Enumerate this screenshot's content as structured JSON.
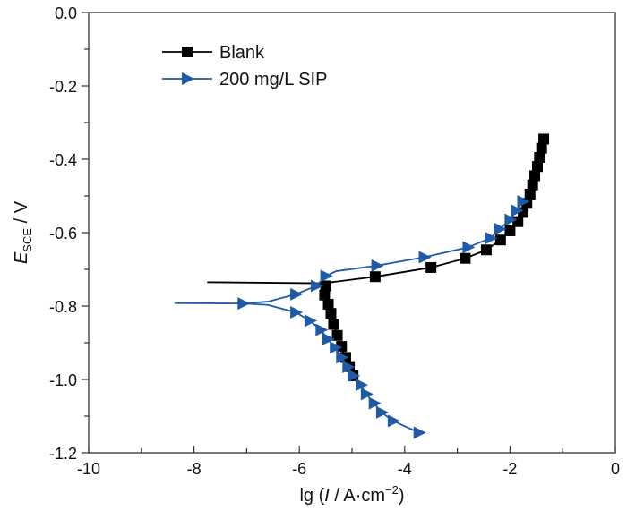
{
  "chart_data": {
    "type": "line",
    "title": "",
    "xlabel": {
      "prefix": "lg (",
      "italic": "I",
      "suffix": " / A·cm",
      "sup": "−2",
      "close": ")"
    },
    "ylabel": {
      "main": "E",
      "sub": "SCE",
      "suffix": " / V"
    },
    "xlim": [
      -10,
      0
    ],
    "ylim": [
      -1.2,
      0.0
    ],
    "xticks": [
      -10,
      -8,
      -6,
      -4,
      -2,
      0
    ],
    "xtick_labels": [
      "-10",
      "-8",
      "-6",
      "-4",
      "-2",
      "0"
    ],
    "yticks": [
      0.0,
      -0.2,
      -0.4,
      -0.6,
      -0.8,
      -1.0,
      -1.2
    ],
    "ytick_labels": [
      "0.0",
      "-0.2",
      "-0.4",
      "-0.6",
      "-0.8",
      "-1.0",
      "-1.2"
    ],
    "grid": false,
    "legend_position": "top-left",
    "series": [
      {
        "name": "Blank",
        "color": "#000000",
        "marker": "square",
        "line_branches": [
          [
            [
              -4.98,
              -0.99
            ],
            [
              -5.05,
              -0.965
            ],
            [
              -5.12,
              -0.94
            ],
            [
              -5.2,
              -0.91
            ],
            [
              -5.28,
              -0.88
            ],
            [
              -5.35,
              -0.85
            ],
            [
              -5.4,
              -0.82
            ],
            [
              -5.45,
              -0.795
            ],
            [
              -5.52,
              -0.77
            ],
            [
              -5.5,
              -0.745
            ],
            [
              -5.6,
              -0.738
            ],
            [
              -7.75,
              -0.735
            ]
          ],
          [
            [
              -5.6,
              -0.738
            ],
            [
              -5.5,
              -0.737
            ],
            [
              -4.56,
              -0.72
            ],
            [
              -3.5,
              -0.695
            ],
            [
              -2.85,
              -0.67
            ],
            [
              -2.45,
              -0.647
            ],
            [
              -2.18,
              -0.62
            ],
            [
              -2.0,
              -0.595
            ],
            [
              -1.85,
              -0.57
            ],
            [
              -1.75,
              -0.545
            ],
            [
              -1.68,
              -0.52
            ],
            [
              -1.62,
              -0.495
            ],
            [
              -1.57,
              -0.47
            ],
            [
              -1.53,
              -0.445
            ],
            [
              -1.48,
              -0.42
            ],
            [
              -1.44,
              -0.395
            ],
            [
              -1.4,
              -0.37
            ],
            [
              -1.36,
              -0.345
            ]
          ]
        ],
        "markers": [
          [
            -4.98,
            -0.99
          ],
          [
            -5.05,
            -0.965
          ],
          [
            -5.12,
            -0.94
          ],
          [
            -5.2,
            -0.91
          ],
          [
            -5.28,
            -0.88
          ],
          [
            -5.35,
            -0.85
          ],
          [
            -5.4,
            -0.82
          ],
          [
            -5.45,
            -0.795
          ],
          [
            -5.52,
            -0.77
          ],
          [
            -5.5,
            -0.745
          ],
          [
            -4.56,
            -0.72
          ],
          [
            -3.5,
            -0.695
          ],
          [
            -2.85,
            -0.67
          ],
          [
            -2.45,
            -0.647
          ],
          [
            -2.18,
            -0.62
          ],
          [
            -2.0,
            -0.595
          ],
          [
            -1.85,
            -0.57
          ],
          [
            -1.75,
            -0.545
          ],
          [
            -1.68,
            -0.52
          ],
          [
            -1.62,
            -0.495
          ],
          [
            -1.57,
            -0.47
          ],
          [
            -1.53,
            -0.445
          ],
          [
            -1.48,
            -0.42
          ],
          [
            -1.44,
            -0.395
          ],
          [
            -1.4,
            -0.37
          ],
          [
            -1.36,
            -0.345
          ]
        ]
      },
      {
        "name": "200 mg/L SIP",
        "color": "#1f5aa6",
        "marker": "triangle-right",
        "line_branches": [
          [
            [
              -3.73,
              -1.145
            ],
            [
              -4.22,
              -1.113
            ],
            [
              -4.44,
              -1.09
            ],
            [
              -4.58,
              -1.065
            ],
            [
              -4.73,
              -1.04
            ],
            [
              -4.83,
              -1.015
            ],
            [
              -4.98,
              -0.99
            ],
            [
              -5.08,
              -0.966
            ],
            [
              -5.2,
              -0.94
            ],
            [
              -5.32,
              -0.913
            ],
            [
              -5.46,
              -0.89
            ],
            [
              -5.59,
              -0.865
            ],
            [
              -5.8,
              -0.84
            ],
            [
              -6.07,
              -0.817
            ],
            [
              -6.6,
              -0.797
            ],
            [
              -7.07,
              -0.793
            ],
            [
              -8.37,
              -0.792
            ]
          ],
          [
            [
              -7.07,
              -0.793
            ],
            [
              -6.6,
              -0.788
            ],
            [
              -6.07,
              -0.768
            ],
            [
              -5.68,
              -0.745
            ],
            [
              -5.5,
              -0.718
            ],
            [
              -5.3,
              -0.705
            ],
            [
              -4.53,
              -0.69
            ],
            [
              -3.63,
              -0.667
            ],
            [
              -2.8,
              -0.64
            ],
            [
              -2.37,
              -0.615
            ],
            [
              -2.2,
              -0.59
            ],
            [
              -2.0,
              -0.565
            ],
            [
              -1.88,
              -0.54
            ],
            [
              -1.76,
              -0.515
            ]
          ]
        ],
        "markers": [
          [
            -3.73,
            -1.145
          ],
          [
            -4.22,
            -1.113
          ],
          [
            -4.44,
            -1.09
          ],
          [
            -4.58,
            -1.065
          ],
          [
            -4.73,
            -1.04
          ],
          [
            -4.83,
            -1.015
          ],
          [
            -4.98,
            -0.99
          ],
          [
            -5.08,
            -0.966
          ],
          [
            -5.2,
            -0.94
          ],
          [
            -5.32,
            -0.913
          ],
          [
            -5.46,
            -0.89
          ],
          [
            -5.59,
            -0.865
          ],
          [
            -5.8,
            -0.84
          ],
          [
            -6.07,
            -0.817
          ],
          [
            -7.07,
            -0.793
          ],
          [
            -6.07,
            -0.768
          ],
          [
            -5.68,
            -0.745
          ],
          [
            -5.5,
            -0.718
          ],
          [
            -4.53,
            -0.69
          ],
          [
            -3.63,
            -0.667
          ],
          [
            -2.8,
            -0.64
          ],
          [
            -2.37,
            -0.615
          ],
          [
            -2.2,
            -0.59
          ],
          [
            -2.0,
            -0.565
          ],
          [
            -1.88,
            -0.54
          ],
          [
            -1.76,
            -0.515
          ]
        ]
      }
    ]
  }
}
